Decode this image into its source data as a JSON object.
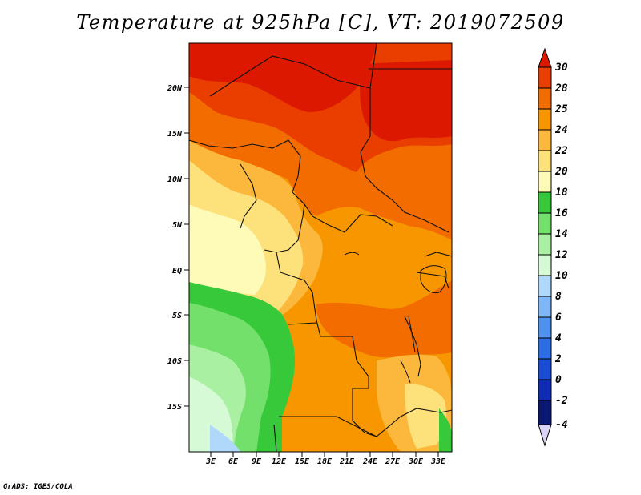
{
  "title": "Temperature at 925hPa [C], VT: 2019072509",
  "credit": "GrADS: IGES/COLA",
  "map": {
    "lat_labels": [
      "20N",
      "15N",
      "10N",
      "5N",
      "EQ",
      "5S",
      "10S",
      "15S"
    ],
    "lat_values": [
      20,
      15,
      10,
      5,
      0,
      -5,
      -10,
      -15
    ],
    "lon_labels": [
      "3E",
      "6E",
      "9E",
      "12E",
      "15E",
      "18E",
      "21E",
      "24E",
      "27E",
      "30E",
      "33E"
    ],
    "lon_values": [
      3,
      6,
      9,
      12,
      15,
      18,
      21,
      24,
      27,
      30,
      33
    ],
    "lon_range": [
      0.5,
      35
    ],
    "lat_range": [
      -19.5,
      25
    ]
  },
  "colorbar": {
    "levels": [
      "30",
      "28",
      "25",
      "24",
      "22",
      "20",
      "18",
      "16",
      "14",
      "12",
      "10",
      "8",
      "6",
      "4",
      "2",
      "0",
      "-2",
      "-4"
    ],
    "colors": [
      "#dd1800",
      "#ea3e00",
      "#f26c00",
      "#f89600",
      "#fbb83c",
      "#fde27c",
      "#fefab8",
      "#38c93a",
      "#74e06c",
      "#aaf0a2",
      "#d6fad6",
      "#b0d8fa",
      "#7eb6f6",
      "#4e92ee",
      "#2c6ee4",
      "#1b4cd6",
      "#0e2cb4",
      "#0a1872",
      "#dcd4f8"
    ]
  },
  "palette": {
    "deep_red": "#dd1800",
    "red": "#ea3e00",
    "orange_red": "#f26c00",
    "orange": "#f89600",
    "light_orange": "#fbb83c",
    "yellow": "#fde27c",
    "pale_yellow": "#fefab8",
    "green": "#38c93a",
    "light_green": "#74e06c",
    "pale_green": "#aaf0a2",
    "very_pale_green": "#d6fad6",
    "pale_blue": "#b0d8fa",
    "light_blue": "#7eb6f6"
  }
}
